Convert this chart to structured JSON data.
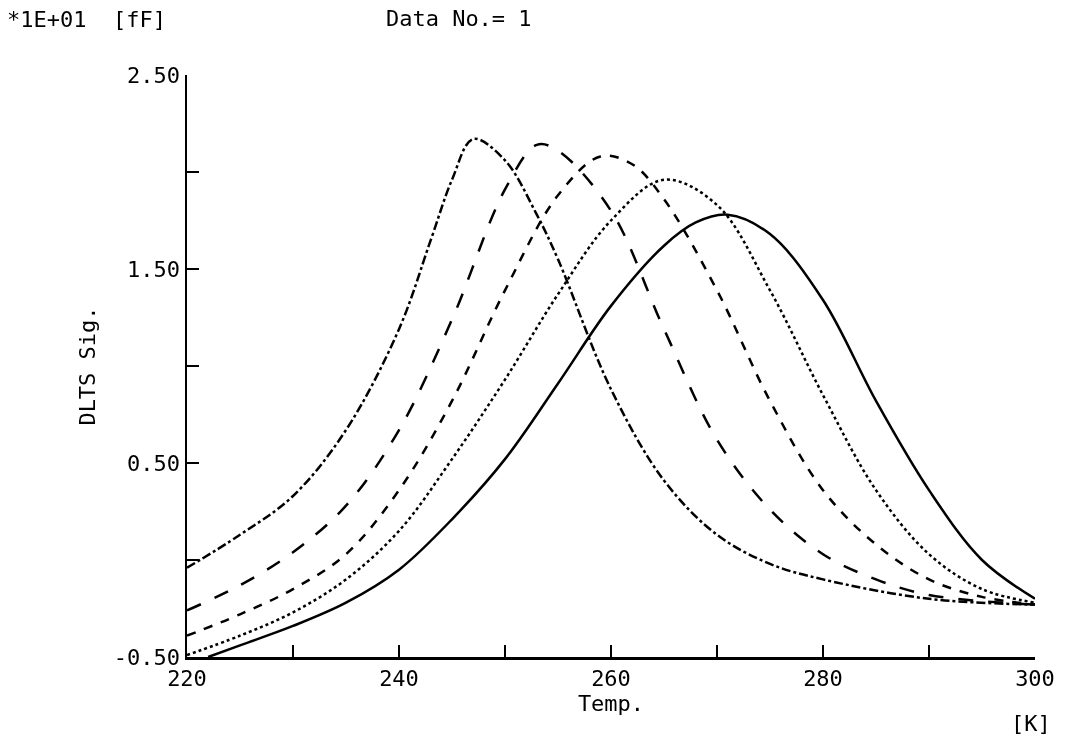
{
  "chart_data": {
    "type": "line",
    "title": "Data No.= 1",
    "xlabel": "Temp.",
    "ylabel": "DLTS Sig.",
    "annotations": [
      "*1E+01  [fF]",
      "[K]"
    ],
    "xlim": [
      220,
      300
    ],
    "xticks": [
      220,
      {
        "value": 230,
        "label": null
      },
      240,
      {
        "value": 250,
        "label": null
      },
      260,
      {
        "value": 270,
        "label": null
      },
      280,
      {
        "value": 290,
        "label": null
      },
      300
    ],
    "ylim": [
      -0.5,
      2.5
    ],
    "yticks": [
      {
        "value": -0.5,
        "label": "-0.50"
      },
      {
        "value": 0,
        "label": null
      },
      {
        "value": 0.5,
        "label": "0.50"
      },
      {
        "value": 1,
        "label": null
      },
      {
        "value": 1.5,
        "label": "1.50"
      },
      {
        "value": 2,
        "label": null
      },
      {
        "value": 2.5,
        "label": "2.50"
      }
    ],
    "grid": false,
    "marker": "none",
    "series": [
      {
        "color": "#000000",
        "line_style": "dashdot",
        "x": [
          220,
          225,
          230,
          235,
          240,
          243,
          245,
          247,
          250,
          253,
          255,
          260,
          265,
          270,
          275,
          280,
          290,
          300
        ],
        "values": [
          -0.04,
          0.13,
          0.33,
          0.67,
          1.19,
          1.65,
          1.96,
          2.17,
          2.06,
          1.78,
          1.55,
          0.88,
          0.41,
          0.13,
          -0.02,
          -0.1,
          -0.2,
          -0.23
        ]
      },
      {
        "color": "#000000",
        "line_style": "longdash",
        "x": [
          220,
          225,
          230,
          235,
          240,
          245,
          250,
          253,
          255,
          260,
          265,
          270,
          275,
          280,
          285,
          290,
          300
        ],
        "values": [
          -0.26,
          -0.13,
          0.04,
          0.28,
          0.67,
          1.24,
          1.91,
          2.14,
          2.11,
          1.8,
          1.19,
          0.62,
          0.26,
          0.03,
          -0.1,
          -0.18,
          -0.23
        ]
      },
      {
        "color": "#000000",
        "line_style": "dashed",
        "x": [
          220,
          225,
          230,
          235,
          240,
          245,
          250,
          255,
          259,
          262,
          265,
          270,
          275,
          280,
          285,
          290,
          295,
          300
        ],
        "values": [
          -0.39,
          -0.28,
          -0.15,
          0.03,
          0.36,
          0.82,
          1.39,
          1.88,
          2.08,
          2.04,
          1.86,
          1.39,
          0.82,
          0.36,
          0.08,
          -0.1,
          -0.19,
          -0.23
        ]
      },
      {
        "color": "#000000",
        "line_style": "dotted",
        "x": [
          220,
          225,
          230,
          235,
          240,
          245,
          250,
          255,
          260,
          265,
          270,
          275,
          280,
          285,
          290,
          295,
          300
        ],
        "values": [
          -0.49,
          -0.39,
          -0.27,
          -0.1,
          0.15,
          0.52,
          0.93,
          1.37,
          1.75,
          1.96,
          1.83,
          1.39,
          0.85,
          0.36,
          0.03,
          -0.15,
          -0.22
        ]
      },
      {
        "color": "#000000",
        "line_style": "solid",
        "x": [
          222,
          225,
          230,
          235,
          240,
          245,
          250,
          255,
          260,
          265,
          268,
          271,
          275,
          280,
          285,
          290,
          295,
          300
        ],
        "values": [
          -0.5,
          -0.44,
          -0.34,
          -0.22,
          -0.05,
          0.21,
          0.52,
          0.91,
          1.31,
          1.62,
          1.74,
          1.78,
          1.68,
          1.34,
          0.82,
          0.36,
          0.0,
          -0.2
        ]
      }
    ]
  }
}
